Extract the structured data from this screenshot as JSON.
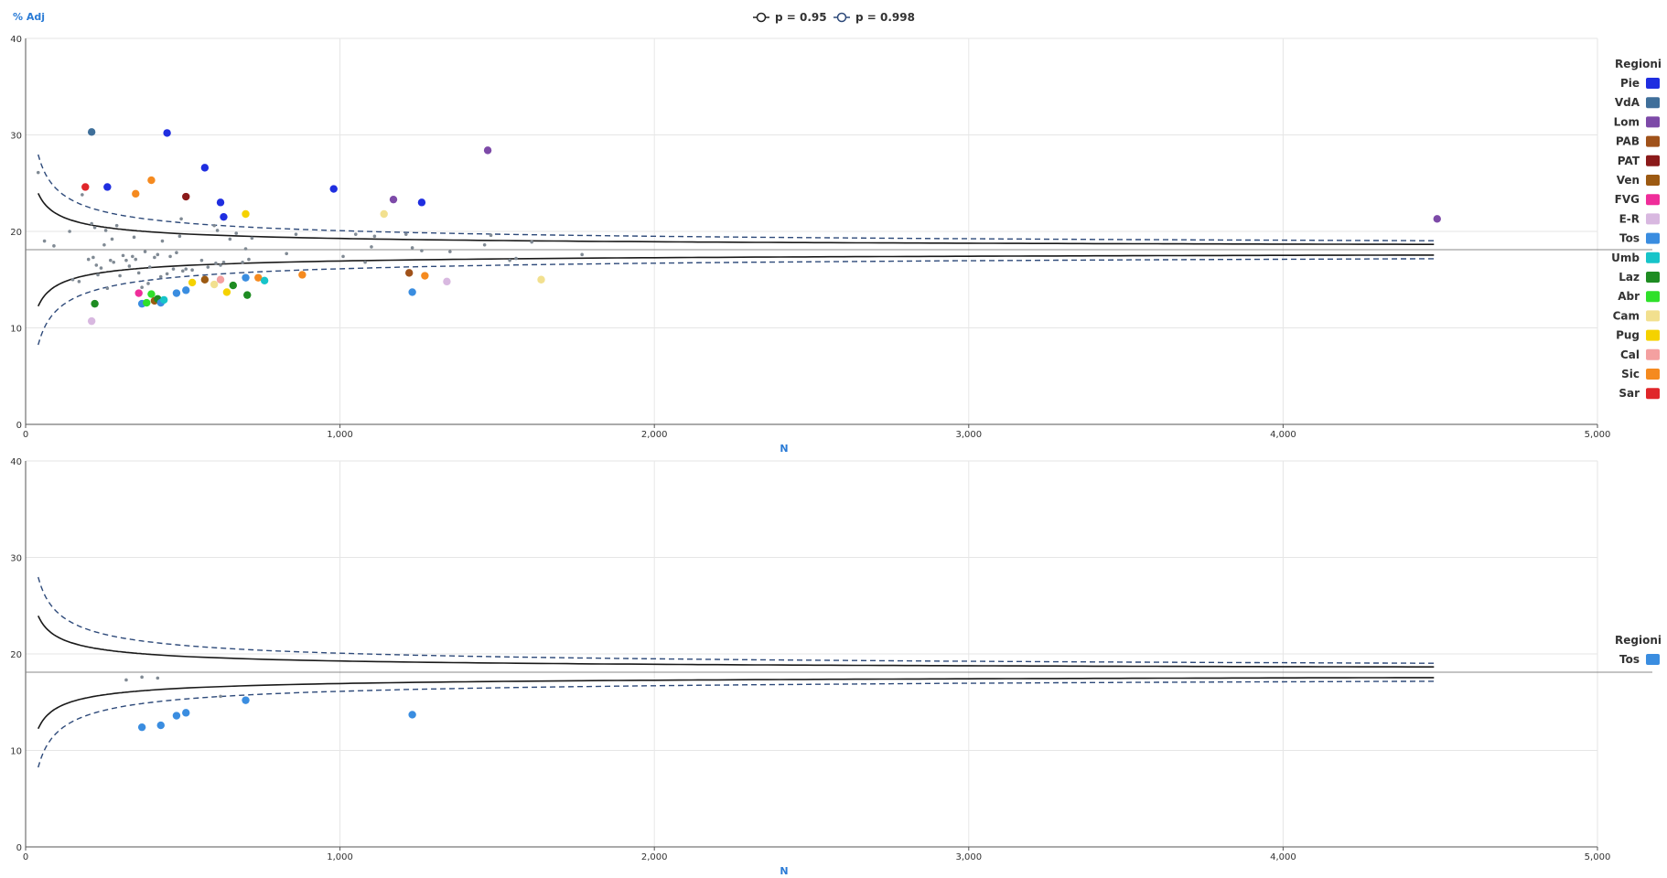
{
  "chart_data": [
    {
      "type": "scatter",
      "title": "",
      "ylabel": "% Adj",
      "xlabel": "N",
      "xlim": [
        0,
        5000
      ],
      "ylim": [
        0,
        40
      ],
      "x_ticks": [
        0,
        1000,
        2000,
        3000,
        4000,
        5000
      ],
      "x_tick_labels": [
        "0",
        "1,000",
        "2,000",
        "3,000",
        "4,000",
        "5,000"
      ],
      "y_ticks": [
        0,
        10,
        20,
        30,
        40
      ],
      "y_tick_labels": [
        "0",
        "10",
        "20",
        "30",
        "40"
      ],
      "grid": true,
      "reference_line": 18.1,
      "limit_legend": [
        "p = 0.95",
        "p = 0.998"
      ],
      "legend_title": "Regioni",
      "legend_position": "right",
      "regions": [
        {
          "name": "Pie",
          "color": "#1f2ee0"
        },
        {
          "name": "VdA",
          "color": "#3f6f9a"
        },
        {
          "name": "Lom",
          "color": "#7d4aa8"
        },
        {
          "name": "PAB",
          "color": "#a0521a"
        },
        {
          "name": "PAT",
          "color": "#8b1a1a"
        },
        {
          "name": "Ven",
          "color": "#9c5a12"
        },
        {
          "name": "FVG",
          "color": "#ef2d9a"
        },
        {
          "name": "E-R",
          "color": "#d8b8e0"
        },
        {
          "name": "Tos",
          "color": "#3a8de0"
        },
        {
          "name": "Umb",
          "color": "#17c4c9"
        },
        {
          "name": "Laz",
          "color": "#1e8c22"
        },
        {
          "name": "Abr",
          "color": "#2fe02a"
        },
        {
          "name": "Cam",
          "color": "#f2e08f"
        },
        {
          "name": "Pug",
          "color": "#f5d200"
        },
        {
          "name": "Cal",
          "color": "#f4a0a0"
        },
        {
          "name": "Sic",
          "color": "#f58a1f"
        },
        {
          "name": "Sar",
          "color": "#e0262a"
        }
      ],
      "points": [
        {
          "n": 210,
          "y": 30.3,
          "r": "VdA"
        },
        {
          "n": 450,
          "y": 30.2,
          "r": "Pie"
        },
        {
          "n": 570,
          "y": 26.6,
          "r": "Pie"
        },
        {
          "n": 260,
          "y": 24.6,
          "r": "Pie"
        },
        {
          "n": 620,
          "y": 23.0,
          "r": "Pie"
        },
        {
          "n": 630,
          "y": 21.5,
          "r": "Pie"
        },
        {
          "n": 980,
          "y": 24.4,
          "r": "Pie"
        },
        {
          "n": 1260,
          "y": 23.0,
          "r": "Pie"
        },
        {
          "n": 1470,
          "y": 28.4,
          "r": "Lom"
        },
        {
          "n": 1170,
          "y": 23.3,
          "r": "Lom"
        },
        {
          "n": 4490,
          "y": 21.3,
          "r": "Lom"
        },
        {
          "n": 510,
          "y": 23.6,
          "r": "PAT"
        },
        {
          "n": 190,
          "y": 24.6,
          "r": "Sar"
        },
        {
          "n": 400,
          "y": 25.3,
          "r": "Sic"
        },
        {
          "n": 350,
          "y": 23.9,
          "r": "Sic"
        },
        {
          "n": 700,
          "y": 21.8,
          "r": "Pug"
        },
        {
          "n": 1140,
          "y": 21.8,
          "r": "Cam"
        },
        {
          "n": 1220,
          "y": 15.7,
          "r": "PAB"
        },
        {
          "n": 1270,
          "y": 15.4,
          "r": "Sic"
        },
        {
          "n": 880,
          "y": 15.5,
          "r": "Sic"
        },
        {
          "n": 1640,
          "y": 15.0,
          "r": "Cam"
        },
        {
          "n": 1340,
          "y": 14.8,
          "r": "E-R"
        },
        {
          "n": 1230,
          "y": 13.7,
          "r": "Tos"
        },
        {
          "n": 220,
          "y": 12.5,
          "r": "Laz"
        },
        {
          "n": 210,
          "y": 10.7,
          "r": "E-R"
        },
        {
          "n": 360,
          "y": 13.6,
          "r": "FVG"
        },
        {
          "n": 370,
          "y": 12.5,
          "r": "Tos"
        },
        {
          "n": 385,
          "y": 12.6,
          "r": "Abr"
        },
        {
          "n": 400,
          "y": 13.5,
          "r": "Abr"
        },
        {
          "n": 410,
          "y": 12.8,
          "r": "Ven"
        },
        {
          "n": 420,
          "y": 13.0,
          "r": "Laz"
        },
        {
          "n": 430,
          "y": 12.6,
          "r": "Tos"
        },
        {
          "n": 440,
          "y": 12.9,
          "r": "Umb"
        },
        {
          "n": 480,
          "y": 13.6,
          "r": "Tos"
        },
        {
          "n": 510,
          "y": 13.9,
          "r": "Tos"
        },
        {
          "n": 530,
          "y": 14.7,
          "r": "Pug"
        },
        {
          "n": 570,
          "y": 15.0,
          "r": "Ven"
        },
        {
          "n": 600,
          "y": 14.5,
          "r": "Cam"
        },
        {
          "n": 620,
          "y": 15.0,
          "r": "Cal"
        },
        {
          "n": 640,
          "y": 13.7,
          "r": "Pug"
        },
        {
          "n": 660,
          "y": 14.4,
          "r": "Laz"
        },
        {
          "n": 700,
          "y": 15.2,
          "r": "Tos"
        },
        {
          "n": 705,
          "y": 13.4,
          "r": "Laz"
        },
        {
          "n": 740,
          "y": 15.2,
          "r": "Sic"
        },
        {
          "n": 760,
          "y": 14.9,
          "r": "Umb"
        }
      ],
      "background_points": [
        [
          40,
          26.1
        ],
        [
          60,
          19.0
        ],
        [
          90,
          18.5
        ],
        [
          140,
          20.0
        ],
        [
          150,
          15.0
        ],
        [
          170,
          14.8
        ],
        [
          180,
          23.8
        ],
        [
          200,
          17.1
        ],
        [
          210,
          20.8
        ],
        [
          215,
          17.3
        ],
        [
          220,
          20.4
        ],
        [
          225,
          16.5
        ],
        [
          230,
          15.5
        ],
        [
          240,
          16.2
        ],
        [
          250,
          18.6
        ],
        [
          255,
          20.1
        ],
        [
          260,
          14.1
        ],
        [
          270,
          17.0
        ],
        [
          275,
          19.2
        ],
        [
          280,
          16.8
        ],
        [
          290,
          20.6
        ],
        [
          300,
          15.4
        ],
        [
          310,
          17.5
        ],
        [
          320,
          17.0
        ],
        [
          330,
          16.4
        ],
        [
          340,
          17.4
        ],
        [
          345,
          19.4
        ],
        [
          350,
          17.1
        ],
        [
          360,
          15.7
        ],
        [
          370,
          14.2
        ],
        [
          380,
          17.9
        ],
        [
          390,
          14.6
        ],
        [
          395,
          16.3
        ],
        [
          410,
          17.3
        ],
        [
          420,
          17.6
        ],
        [
          430,
          15.3
        ],
        [
          435,
          19.0
        ],
        [
          450,
          15.6
        ],
        [
          460,
          17.4
        ],
        [
          470,
          16.1
        ],
        [
          480,
          17.8
        ],
        [
          490,
          19.5
        ],
        [
          495,
          21.3
        ],
        [
          500,
          15.9
        ],
        [
          510,
          16.1
        ],
        [
          530,
          16.0
        ],
        [
          560,
          17.0
        ],
        [
          580,
          16.3
        ],
        [
          600,
          20.6
        ],
        [
          605,
          16.7
        ],
        [
          610,
          20.1
        ],
        [
          620,
          16.5
        ],
        [
          630,
          16.8
        ],
        [
          650,
          19.2
        ],
        [
          670,
          19.8
        ],
        [
          690,
          16.8
        ],
        [
          700,
          18.2
        ],
        [
          710,
          17.1
        ],
        [
          720,
          19.3
        ],
        [
          760,
          15.1
        ],
        [
          830,
          17.7
        ],
        [
          860,
          19.7
        ],
        [
          1010,
          17.4
        ],
        [
          1050,
          19.7
        ],
        [
          1080,
          16.8
        ],
        [
          1100,
          18.4
        ],
        [
          1110,
          19.5
        ],
        [
          1210,
          19.7
        ],
        [
          1230,
          18.3
        ],
        [
          1260,
          18.0
        ],
        [
          1350,
          17.9
        ],
        [
          1460,
          18.6
        ],
        [
          1480,
          19.6
        ],
        [
          1540,
          17.0
        ],
        [
          1560,
          17.2
        ],
        [
          1610,
          18.9
        ],
        [
          1770,
          17.6
        ]
      ],
      "limits": {
        "center": 18.1,
        "n_from": 40,
        "n_to": 4490,
        "p95_scale": 0.48,
        "p998_scale": 0.78
      }
    },
    {
      "type": "scatter",
      "title": "",
      "xlabel": "N",
      "xlim": [
        0,
        5000
      ],
      "ylim": [
        0,
        40
      ],
      "x_ticks": [
        0,
        1000,
        2000,
        3000,
        4000,
        5000
      ],
      "x_tick_labels": [
        "0",
        "1,000",
        "2,000",
        "3,000",
        "4,000",
        "5,000"
      ],
      "y_ticks": [
        0,
        10,
        20,
        30,
        40
      ],
      "y_tick_labels": [
        "0",
        "10",
        "20",
        "30",
        "40"
      ],
      "grid": true,
      "reference_line": 18.1,
      "legend_title": "Regioni",
      "legend_position": "right",
      "regions": [
        {
          "name": "Tos",
          "color": "#3a8de0"
        }
      ],
      "points": [
        {
          "n": 370,
          "y": 12.4,
          "r": "Tos"
        },
        {
          "n": 430,
          "y": 12.6,
          "r": "Tos"
        },
        {
          "n": 480,
          "y": 13.6,
          "r": "Tos"
        },
        {
          "n": 510,
          "y": 13.9,
          "r": "Tos"
        },
        {
          "n": 700,
          "y": 15.2,
          "r": "Tos"
        },
        {
          "n": 1230,
          "y": 13.7,
          "r": "Tos"
        }
      ],
      "background_points": [
        [
          320,
          17.3
        ],
        [
          370,
          17.6
        ],
        [
          420,
          17.5
        ],
        [
          620,
          15.6
        ]
      ],
      "limits": {
        "center": 18.1,
        "n_from": 40,
        "n_to": 4490,
        "p95_scale": 0.48,
        "p998_scale": 0.78
      }
    }
  ]
}
